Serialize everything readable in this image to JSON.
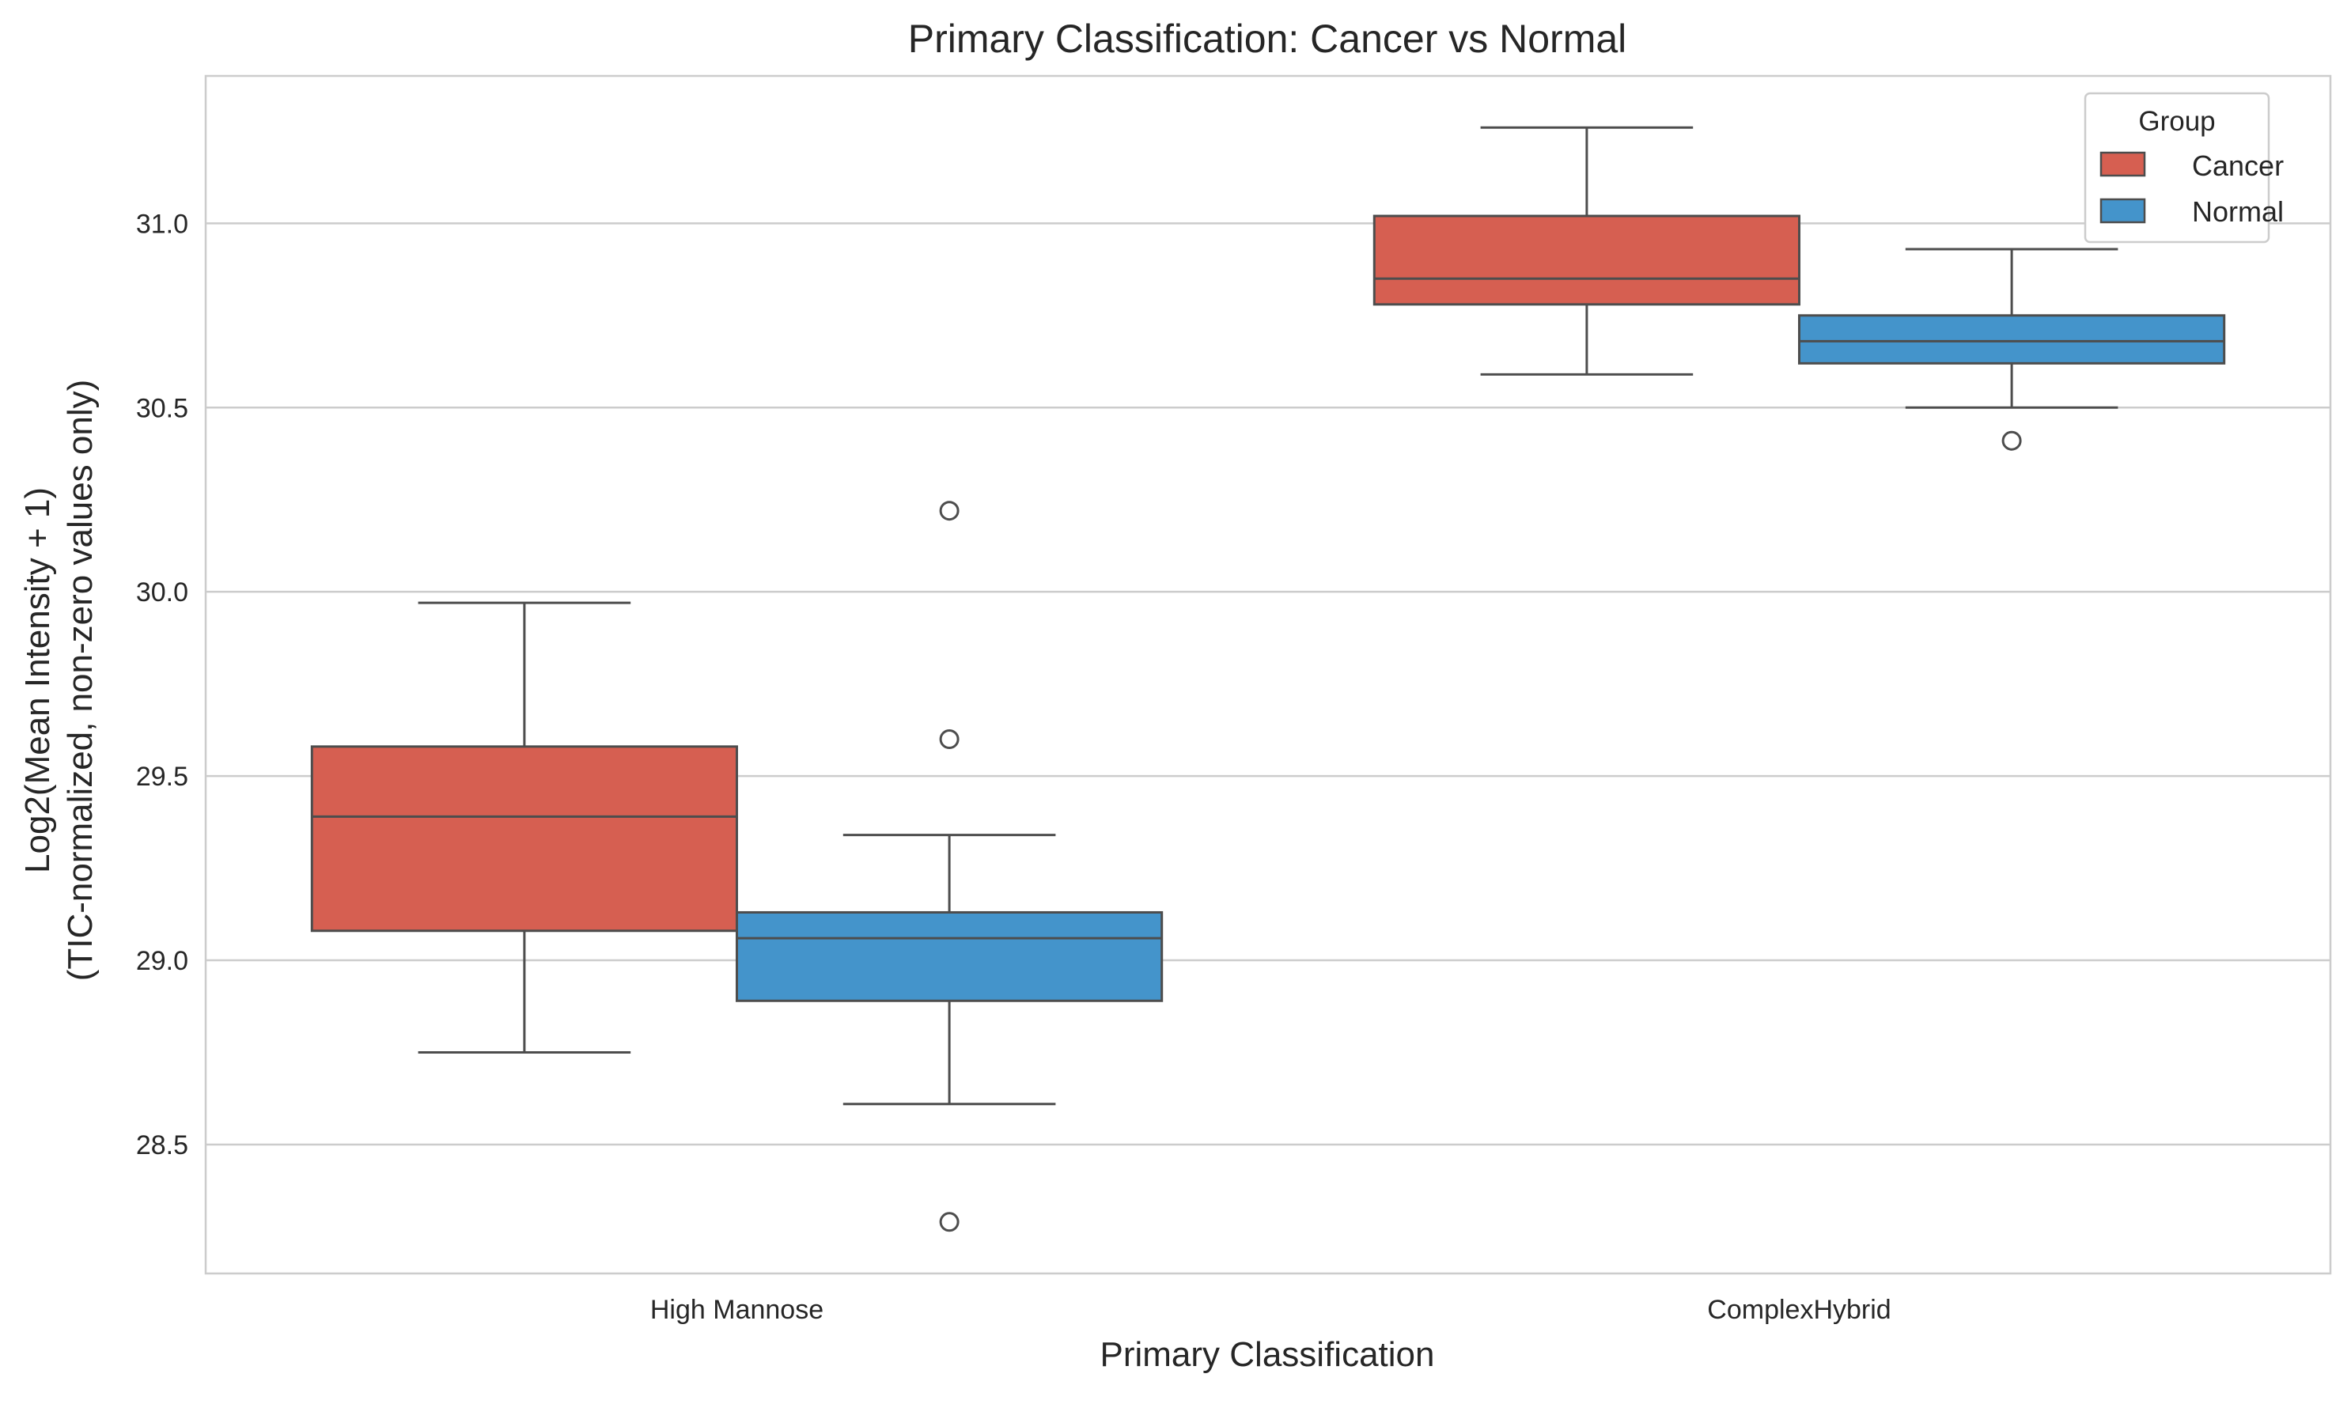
{
  "chart_data": {
    "type": "box",
    "title": "Primary Classification: Cancer vs Normal",
    "xlabel": "Primary Classification",
    "ylabel": [
      "Log2(Mean Intensity + 1)",
      "(TIC-normalized, non-zero values only)"
    ],
    "categories": [
      "High Mannose",
      "ComplexHybrid"
    ],
    "ylim": [
      28.15,
      31.4
    ],
    "yticks": [
      28.5,
      29.0,
      29.5,
      30.0,
      30.5,
      31.0
    ],
    "ytick_labels": [
      "28.5",
      "29.0",
      "29.5",
      "30.0",
      "30.5",
      "31.0"
    ],
    "grid": "horizontal",
    "legend": {
      "title": "Group",
      "position": "top-right"
    },
    "series": [
      {
        "name": "Cancer",
        "color": "#d65f51",
        "boxes": [
          {
            "category": "High Mannose",
            "whisker_low": 28.75,
            "q1": 29.08,
            "median": 29.39,
            "q3": 29.58,
            "whisker_high": 29.97,
            "outliers": []
          },
          {
            "category": "ComplexHybrid",
            "whisker_low": 30.59,
            "q1": 30.78,
            "median": 30.85,
            "q3": 31.02,
            "whisker_high": 31.26,
            "outliers": []
          }
        ]
      },
      {
        "name": "Normal",
        "color": "#4494cb",
        "boxes": [
          {
            "category": "High Mannose",
            "whisker_low": 28.61,
            "q1": 28.89,
            "median": 29.06,
            "q3": 29.13,
            "whisker_high": 29.34,
            "outliers": [
              30.22,
              29.6,
              28.29
            ]
          },
          {
            "category": "ComplexHybrid",
            "whisker_low": 30.5,
            "q1": 30.62,
            "median": 30.68,
            "q3": 30.75,
            "whisker_high": 30.93,
            "outliers": [
              30.41
            ]
          }
        ]
      }
    ]
  }
}
